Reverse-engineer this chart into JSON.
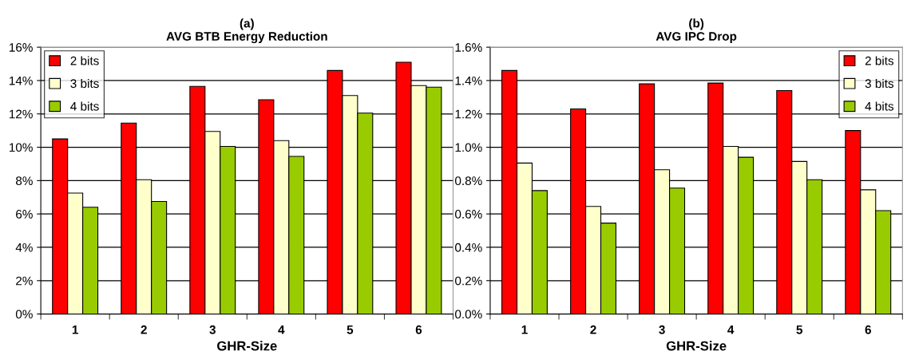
{
  "chart_data": [
    {
      "type": "bar",
      "title": "(a)\nAVG BTB Energy Reduction",
      "xlabel": "GHR-Size",
      "categories": [
        "1",
        "2",
        "3",
        "4",
        "5",
        "6"
      ],
      "series": [
        {
          "name": "2 bits",
          "color": "#ff0000",
          "values": [
            10.5,
            11.45,
            13.65,
            12.85,
            14.6,
            15.1
          ]
        },
        {
          "name": "3 bits",
          "color": "#ffffcc",
          "values": [
            7.25,
            8.05,
            10.95,
            10.4,
            13.1,
            13.7
          ]
        },
        {
          "name": "4 bits",
          "color": "#99cc00",
          "values": [
            6.4,
            6.75,
            10.05,
            9.45,
            12.05,
            13.6
          ]
        }
      ],
      "ylim": [
        0,
        16
      ],
      "yticks": [
        {
          "value": 0,
          "label": "0%"
        },
        {
          "value": 2,
          "label": "2%"
        },
        {
          "value": 4,
          "label": "4%"
        },
        {
          "value": 6,
          "label": "6%"
        },
        {
          "value": 8,
          "label": "8%"
        },
        {
          "value": 10,
          "label": "10%"
        },
        {
          "value": 12,
          "label": "12%"
        },
        {
          "value": 14,
          "label": "14%"
        },
        {
          "value": 16,
          "label": "16%"
        }
      ],
      "grid": "y",
      "legend": "top left"
    },
    {
      "type": "bar",
      "title": "(b)\nAVG IPC Drop",
      "xlabel": "GHR-Size",
      "categories": [
        "1",
        "2",
        "3",
        "4",
        "5",
        "6"
      ],
      "series": [
        {
          "name": "2 bits",
          "color": "#ff0000",
          "values": [
            1.46,
            1.23,
            1.38,
            1.385,
            1.34,
            1.1
          ]
        },
        {
          "name": "3 bits",
          "color": "#ffffcc",
          "values": [
            0.905,
            0.645,
            0.865,
            1.005,
            0.915,
            0.745
          ]
        },
        {
          "name": "4 bits",
          "color": "#99cc00",
          "values": [
            0.74,
            0.545,
            0.755,
            0.94,
            0.805,
            0.62
          ]
        }
      ],
      "ylim": [
        0,
        1.6
      ],
      "yticks": [
        {
          "value": 0,
          "label": "0.0%"
        },
        {
          "value": 0.2,
          "label": "0.2%"
        },
        {
          "value": 0.4,
          "label": "0.4%"
        },
        {
          "value": 0.6,
          "label": "0.6%"
        },
        {
          "value": 0.8,
          "label": "0.8%"
        },
        {
          "value": 1.0,
          "label": "1.0%"
        },
        {
          "value": 1.2,
          "label": "1.2%"
        },
        {
          "value": 1.4,
          "label": "1.4%"
        },
        {
          "value": 1.6,
          "label": "1.6%"
        }
      ],
      "grid": "y",
      "legend": "top right"
    }
  ]
}
